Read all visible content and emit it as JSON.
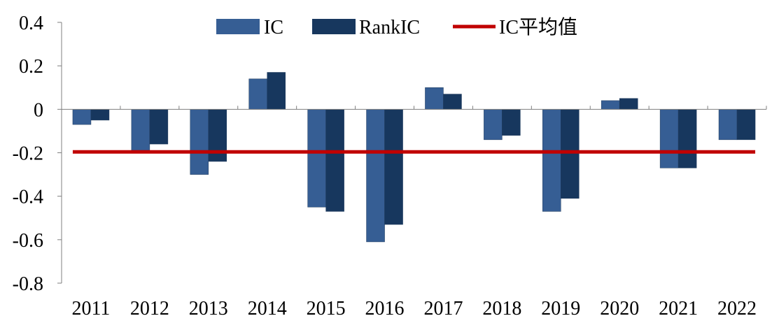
{
  "chart_data": {
    "type": "bar",
    "title": "",
    "xlabel": "",
    "ylabel": "",
    "categories": [
      "2011",
      "2012",
      "2013",
      "2014",
      "2015",
      "2016",
      "2017",
      "2018",
      "2019",
      "2020",
      "2021",
      "2022"
    ],
    "series": [
      {
        "name": "IC",
        "color": "#365E94",
        "values": [
          -0.07,
          -0.19,
          -0.3,
          0.14,
          -0.45,
          -0.61,
          0.1,
          -0.14,
          -0.47,
          0.04,
          -0.27,
          -0.14
        ]
      },
      {
        "name": "RankIC",
        "color": "#17375E",
        "values": [
          -0.05,
          -0.16,
          -0.24,
          0.17,
          -0.47,
          -0.53,
          0.07,
          -0.12,
          -0.41,
          0.05,
          -0.27,
          -0.14
        ]
      }
    ],
    "reference_line": {
      "name": "IC平均值",
      "value": -0.196,
      "color": "#C00000"
    },
    "yticks": [
      0.4,
      0.2,
      0,
      -0.2,
      -0.4,
      -0.6,
      -0.8
    ],
    "ytick_labels": [
      "0.4",
      "0.2",
      "0",
      "-0.2",
      "-0.4",
      "-0.6",
      "-0.8"
    ],
    "ylim": [
      -0.8,
      0.4
    ],
    "legend_position": "top"
  }
}
